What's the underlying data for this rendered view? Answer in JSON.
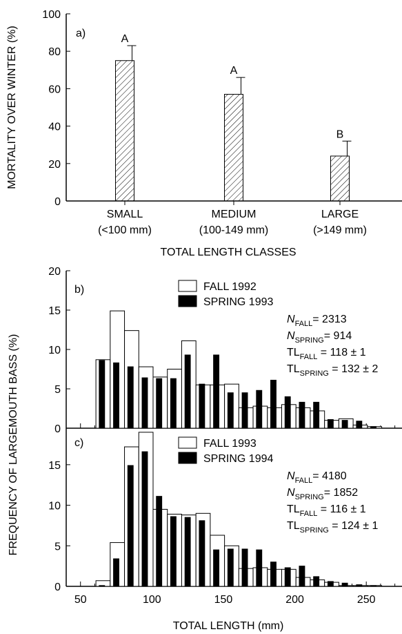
{
  "figure": {
    "shared_ylabel": "FREQUENCY OF LARGEMOUTH BASS (%)",
    "xlabel_bottom": "TOTAL LENGTH (mm)"
  },
  "chart_data": [
    {
      "panel": "a)",
      "type": "bar",
      "hatch": "diagonal",
      "ylabel": "MORTALITY OVER WINTER (%)",
      "xlabel": "TOTAL LENGTH CLASSES",
      "ylim": [
        0,
        100
      ],
      "yticks": [
        0,
        20,
        40,
        60,
        80,
        100
      ],
      "categories": [
        {
          "name": "SMALL",
          "range": "(<100 mm)"
        },
        {
          "name": "MEDIUM",
          "range": "(100-149 mm)"
        },
        {
          "name": "LARGE",
          "range": "(>149 mm)"
        }
      ],
      "values": [
        75,
        57,
        24
      ],
      "errors": [
        8,
        9,
        8
      ],
      "letters": [
        "A",
        "A",
        "B"
      ]
    },
    {
      "panel": "b)",
      "type": "bar",
      "xlim": [
        40,
        275
      ],
      "ylim": [
        0,
        20
      ],
      "yticks": [
        0,
        5,
        10,
        15,
        20
      ],
      "bin_width": 10,
      "series": [
        {
          "name": "FALL 1992",
          "fill": "#ffffff",
          "x": [
            65,
            75,
            85,
            95,
            105,
            115,
            125,
            135,
            145,
            155,
            165,
            175,
            185,
            195,
            205,
            215,
            225,
            235,
            245,
            255
          ],
          "values": [
            8.7,
            14.9,
            12.4,
            7.8,
            6.5,
            7.5,
            11.1,
            5.5,
            5.5,
            5.6,
            2.6,
            2.8,
            2.6,
            3.0,
            2.6,
            2.2,
            1.0,
            1.2,
            0.4,
            0.2
          ]
        },
        {
          "name": "SPRING 1993",
          "fill": "#000000",
          "x": [
            65,
            75,
            85,
            95,
            105,
            115,
            125,
            135,
            145,
            155,
            165,
            175,
            185,
            195,
            205,
            215,
            225,
            235,
            245,
            255
          ],
          "values": [
            8.6,
            8.3,
            7.8,
            6.4,
            6.3,
            6.3,
            9.3,
            5.6,
            9.3,
            4.5,
            4.5,
            4.8,
            6.1,
            4.0,
            3.3,
            3.3,
            1.1,
            1.0,
            0.9,
            0.2
          ]
        }
      ],
      "stats": [
        {
          "sym": "N",
          "sub": "FALL",
          "rest": "= 2313",
          "italic": true
        },
        {
          "sym": "N",
          "sub": "SPRING",
          "rest": "= 914",
          "italic": true
        },
        {
          "sym": "TL",
          "sub": "FALL",
          "rest": " = 118 ± 1",
          "italic": false
        },
        {
          "sym": "TL",
          "sub": "SPRING",
          "rest": " = 132 ± 2",
          "italic": false
        }
      ]
    },
    {
      "panel": "c)",
      "type": "bar",
      "xlim": [
        40,
        275
      ],
      "ylim": [
        0,
        19.5
      ],
      "yticks": [
        0,
        5,
        10,
        15
      ],
      "xticks": [
        50,
        100,
        150,
        200,
        250
      ],
      "bin_width": 10,
      "series": [
        {
          "name": "FALL 1993",
          "fill": "#ffffff",
          "x": [
            65,
            75,
            85,
            95,
            105,
            115,
            125,
            135,
            145,
            155,
            165,
            175,
            185,
            195,
            205,
            215,
            225,
            235,
            245,
            255
          ],
          "values": [
            0.7,
            5.4,
            17.2,
            19.0,
            9.5,
            8.9,
            8.8,
            9.0,
            6.3,
            5.0,
            2.2,
            2.3,
            2.1,
            2.1,
            1.1,
            0.8,
            0.5,
            0.1,
            0.1,
            0.1
          ]
        },
        {
          "name": "SPRING 1994",
          "fill": "#000000",
          "x": [
            65,
            75,
            85,
            95,
            105,
            115,
            125,
            135,
            145,
            155,
            165,
            175,
            185,
            195,
            205,
            215,
            225,
            235,
            245,
            255
          ],
          "values": [
            0.1,
            3.4,
            14.9,
            16.6,
            11.1,
            8.6,
            8.5,
            8.1,
            4.5,
            4.6,
            4.6,
            4.5,
            3.0,
            2.3,
            2.5,
            1.2,
            0.6,
            0.4,
            0.2,
            0.1
          ]
        }
      ],
      "stats": [
        {
          "sym": "N",
          "sub": "FALL",
          "rest": "= 4180",
          "italic": true
        },
        {
          "sym": "N",
          "sub": "SPRING",
          "rest": "= 1852",
          "italic": true
        },
        {
          "sym": "TL",
          "sub": "FALL",
          "rest": " = 116 ± 1",
          "italic": false
        },
        {
          "sym": "TL",
          "sub": "SPRING",
          "rest": " = 124 ± 1",
          "italic": false
        }
      ]
    }
  ]
}
